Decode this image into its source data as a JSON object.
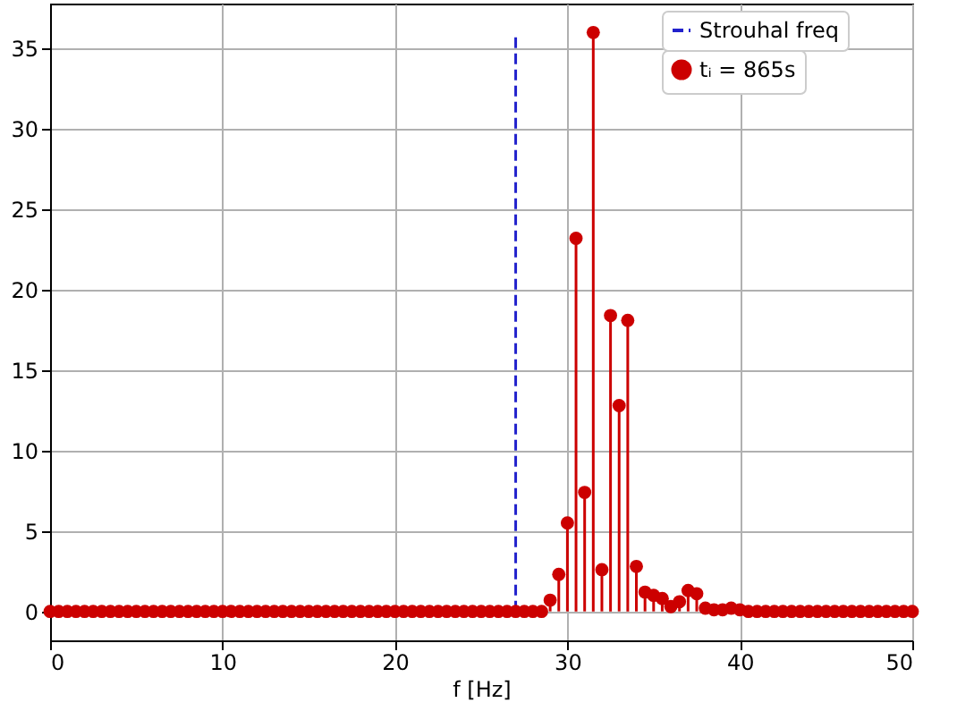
{
  "chart_data": {
    "type": "lollipop",
    "xlabel": "f [Hz]",
    "xlim": [
      0,
      50
    ],
    "ylim": [
      -1.8,
      37.8
    ],
    "xticks": [
      0,
      10,
      20,
      30,
      40,
      50
    ],
    "yticks": [
      0,
      5,
      10,
      15,
      20,
      25,
      30,
      35
    ],
    "grid": true,
    "legend": "top right",
    "series": [
      {
        "name": "Strouhal freq",
        "type": "line",
        "line_style": "dashed",
        "marker": "none",
        "color": "#2222cc",
        "x": [
          27,
          27
        ],
        "values": [
          0,
          36
        ]
      },
      {
        "name": "tᵢ = 865s",
        "marker": "circle",
        "color": "#cc0000",
        "x": [
          0,
          0.5,
          1,
          1.5,
          2,
          2.5,
          3,
          3.5,
          4,
          4.5,
          5,
          5.5,
          6,
          6.5,
          7,
          7.5,
          8,
          8.5,
          9,
          9.5,
          10,
          10.5,
          11,
          11.5,
          12,
          12.5,
          13,
          13.5,
          14,
          14.5,
          15,
          15.5,
          16,
          16.5,
          17,
          17.5,
          18,
          18.5,
          19,
          19.5,
          20,
          20.5,
          21,
          21.5,
          22,
          22.5,
          23,
          23.5,
          24,
          24.5,
          25,
          25.5,
          26,
          26.5,
          27,
          27.5,
          28,
          28.5,
          29,
          29.5,
          30,
          30.5,
          31,
          31.5,
          32,
          32.5,
          33,
          33.5,
          34,
          34.5,
          35,
          35.5,
          36,
          36.5,
          37,
          37.5,
          38,
          38.5,
          39,
          39.5,
          40,
          40.5,
          41,
          41.5,
          42,
          42.5,
          43,
          43.5,
          44,
          44.5,
          45,
          45.5,
          46,
          46.5,
          47,
          47.5,
          48,
          48.5,
          49,
          49.5,
          50
        ],
        "values": [
          0,
          0,
          0,
          0,
          0,
          0,
          0,
          0,
          0,
          0,
          0,
          0,
          0,
          0,
          0,
          0,
          0,
          0,
          0,
          0,
          0,
          0,
          0,
          0,
          0,
          0,
          0,
          0,
          0,
          0,
          0,
          0,
          0,
          0,
          0,
          0,
          0,
          0,
          0,
          0,
          0,
          0,
          0,
          0,
          0,
          0,
          0,
          0,
          0,
          0,
          0,
          0,
          0,
          0,
          0,
          0,
          0,
          0,
          0.7,
          2.3,
          5.5,
          23.2,
          7.4,
          36,
          2.6,
          18.4,
          12.8,
          18.1,
          2.8,
          1.2,
          1.0,
          0.8,
          0.3,
          0.6,
          1.3,
          1.1,
          0.2,
          0.1,
          0.1,
          0.2,
          0.1,
          0,
          0,
          0,
          0,
          0,
          0,
          0,
          0,
          0,
          0,
          0,
          0,
          0,
          0,
          0,
          0,
          0,
          0,
          0,
          0
        ]
      }
    ]
  }
}
